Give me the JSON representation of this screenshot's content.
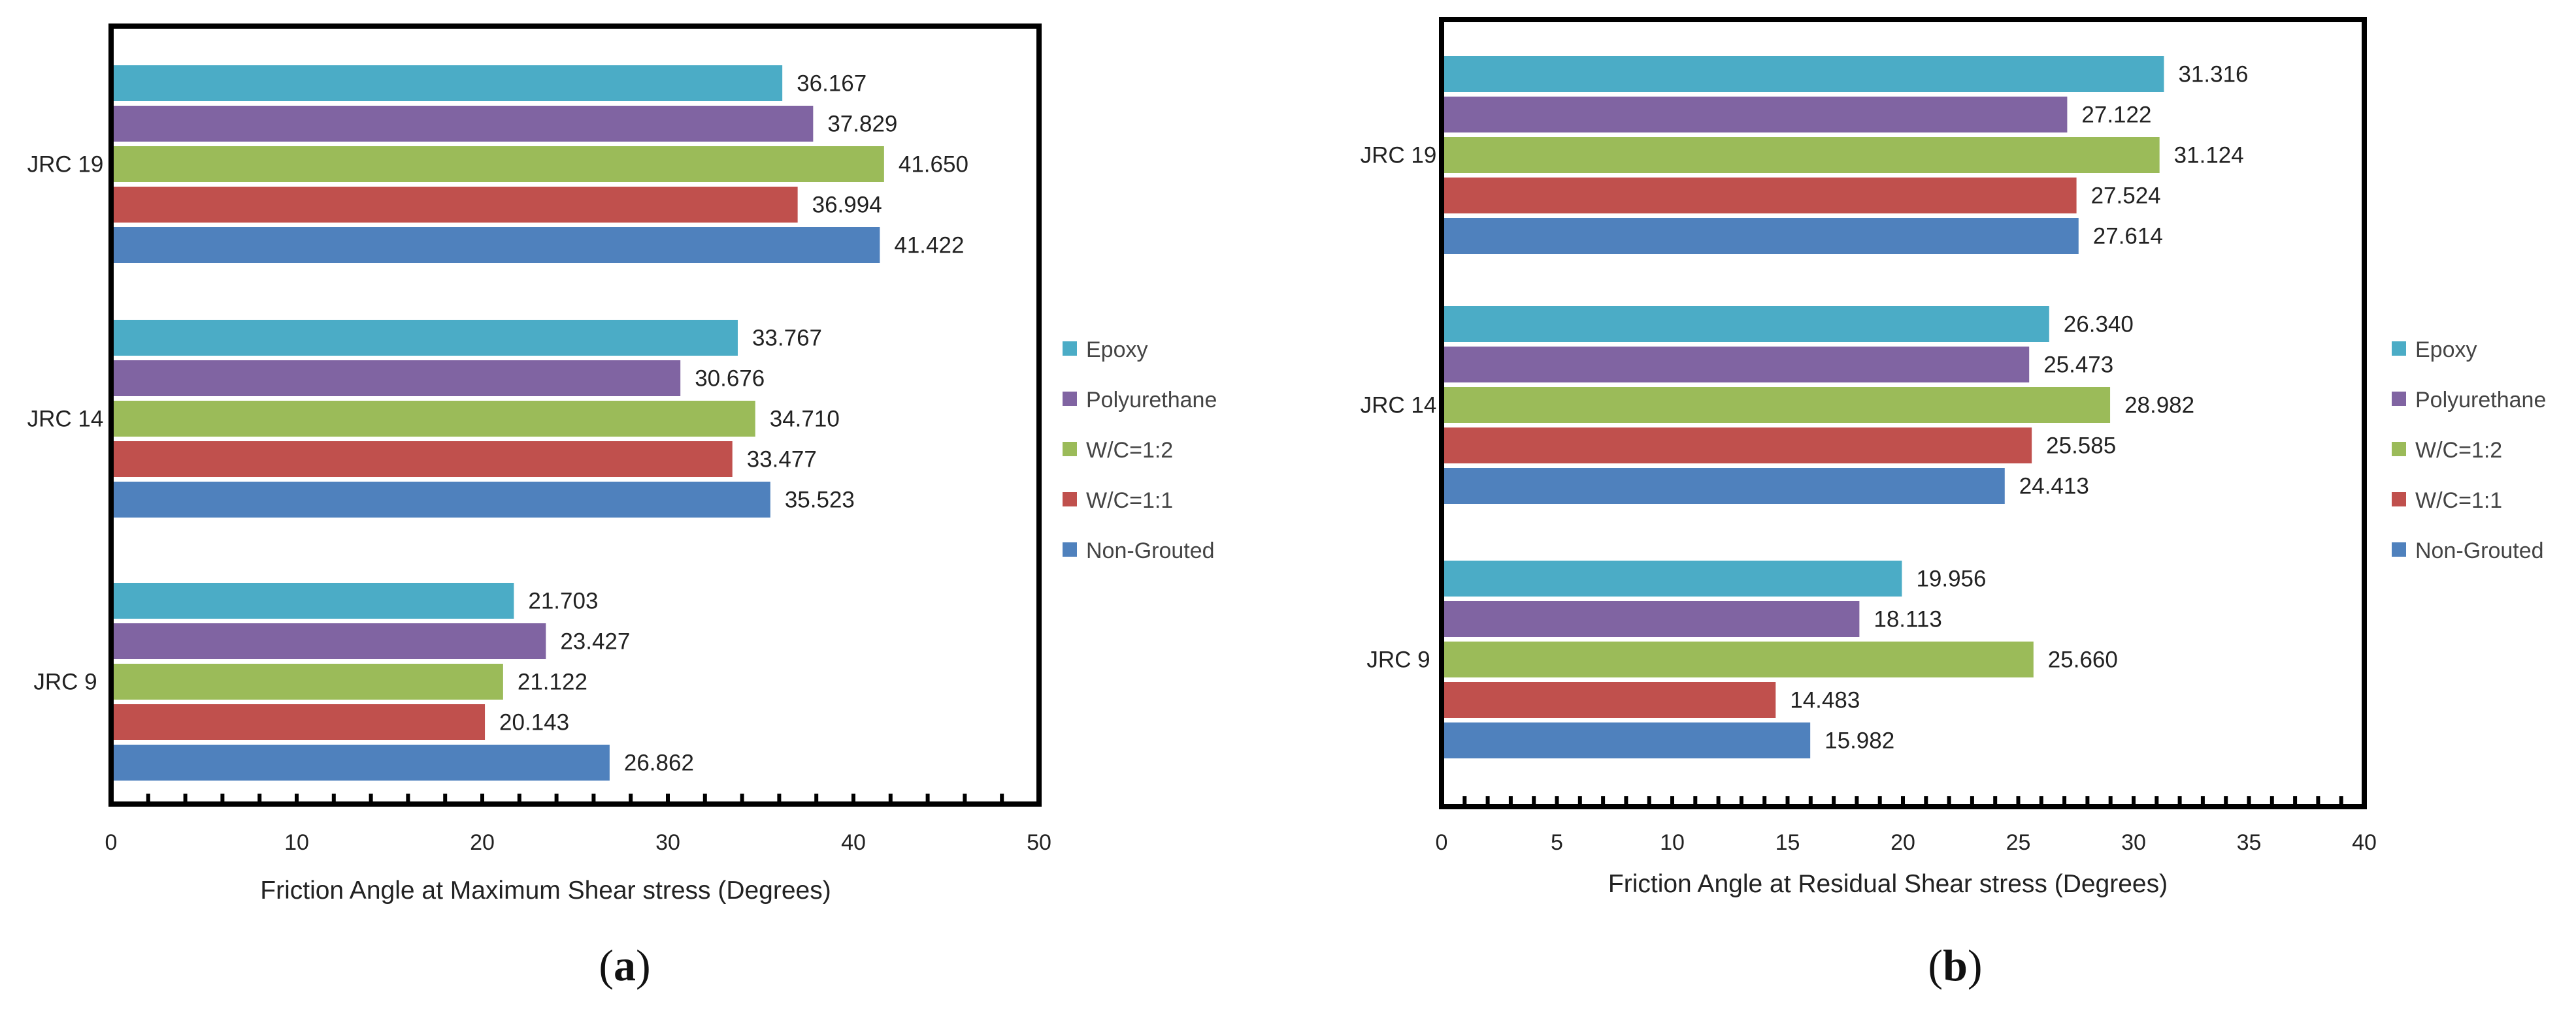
{
  "colors": {
    "Epoxy": "#4bacc6",
    "Polyurethane": "#8064a2",
    "W/C=1:2": "#9bbb59",
    "W/C=1:1": "#c0504d",
    "Non-Grouted": "#4f81bd",
    "frame": "#000000"
  },
  "chart_data": [
    {
      "type": "bar",
      "orientation": "horizontal",
      "panel_label": {
        "open": "(",
        "letter": "a",
        "close": ")"
      },
      "xlabel": "Friction Angle at Maximum Shear stress (Degrees)",
      "ylabel": "",
      "xlim": [
        0,
        50
      ],
      "xticks": [
        0,
        10,
        20,
        30,
        40,
        50
      ],
      "categories": [
        "JRC 19",
        "JRC 14",
        "JRC 9"
      ],
      "legend_position": "right",
      "grid": false,
      "series": [
        {
          "name": "Epoxy",
          "values": [
            36.167,
            33.767,
            21.703
          ],
          "labels": [
            "36.167",
            "33.767",
            "21.703"
          ]
        },
        {
          "name": "Polyurethane",
          "values": [
            37.829,
            30.676,
            23.427
          ],
          "labels": [
            "37.829",
            "30.676",
            "23.427"
          ]
        },
        {
          "name": "W/C=1:2",
          "values": [
            41.65,
            34.71,
            21.122
          ],
          "labels": [
            "41.650",
            "34.710",
            "21.122"
          ]
        },
        {
          "name": "W/C=1:1",
          "values": [
            36.994,
            33.477,
            20.143
          ],
          "labels": [
            "36.994",
            "33.477",
            "20.143"
          ]
        },
        {
          "name": "Non-Grouted",
          "values": [
            41.422,
            35.523,
            26.862
          ],
          "labels": [
            "41.422",
            "35.523",
            "26.862"
          ]
        }
      ]
    },
    {
      "type": "bar",
      "orientation": "horizontal",
      "panel_label": {
        "open": "(",
        "letter": "b",
        "close": ")"
      },
      "xlabel": "Friction Angle at Residual Shear stress (Degrees)",
      "ylabel": "",
      "xlim": [
        0,
        40
      ],
      "xticks": [
        0,
        5,
        10,
        15,
        20,
        25,
        30,
        35,
        40
      ],
      "categories": [
        "JRC 19",
        "JRC 14",
        "JRC 9"
      ],
      "legend_position": "right",
      "grid": false,
      "series": [
        {
          "name": "Epoxy",
          "values": [
            31.316,
            26.34,
            19.956
          ],
          "labels": [
            "31.316",
            "26.340",
            "19.956"
          ]
        },
        {
          "name": "Polyurethane",
          "values": [
            27.122,
            25.473,
            18.113
          ],
          "labels": [
            "27.122",
            "25.473",
            "18.113"
          ]
        },
        {
          "name": "W/C=1:2",
          "values": [
            31.124,
            28.982,
            25.66
          ],
          "labels": [
            "31.124",
            "28.982",
            "25.660"
          ]
        },
        {
          "name": "W/C=1:1",
          "values": [
            27.524,
            25.585,
            14.483
          ],
          "labels": [
            "27.524",
            "25.585",
            "14.483"
          ]
        },
        {
          "name": "Non-Grouted",
          "values": [
            27.614,
            24.413,
            15.982
          ],
          "labels": [
            "27.614",
            "24.413",
            "15.982"
          ]
        }
      ]
    }
  ]
}
